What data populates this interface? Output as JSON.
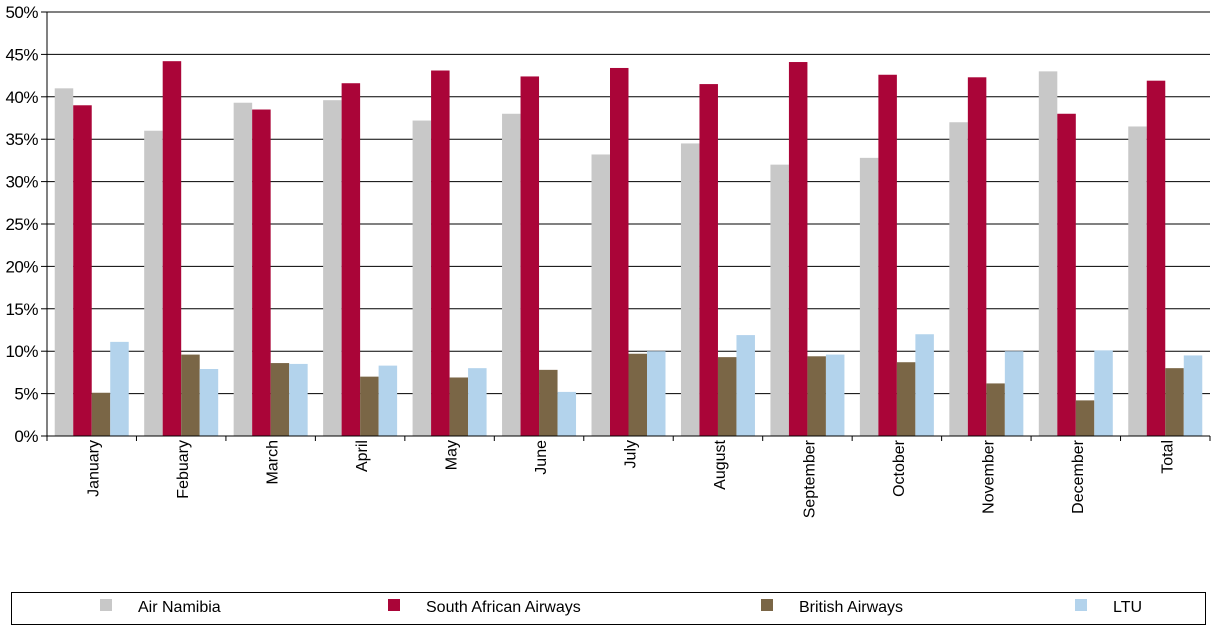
{
  "chart_data": {
    "type": "bar",
    "title": "",
    "xlabel": "",
    "ylabel": "",
    "ylim": [
      0,
      50
    ],
    "y_ticks": [
      "0%",
      "5%",
      "10%",
      "15%",
      "20%",
      "25%",
      "30%",
      "35%",
      "40%",
      "45%",
      "50%"
    ],
    "grid": true,
    "legend_position": "bottom",
    "categories": [
      "January",
      "Febuary",
      "March",
      "April",
      "May",
      "June",
      "July",
      "August",
      "September",
      "October",
      "November",
      "December",
      "Total"
    ],
    "series": [
      {
        "name": "Air Namibia",
        "color": "#c8c8c8",
        "values": [
          41.0,
          36.0,
          39.3,
          39.6,
          37.2,
          38.0,
          33.2,
          34.5,
          32.0,
          32.8,
          37.0,
          43.0,
          36.5
        ]
      },
      {
        "name": "South African Airways",
        "color": "#aa0538",
        "values": [
          39.0,
          44.2,
          38.5,
          41.6,
          43.1,
          42.4,
          43.4,
          41.5,
          44.1,
          42.6,
          42.3,
          38.0,
          41.9
        ]
      },
      {
        "name": "British Airways",
        "color": "#7a6646",
        "values": [
          5.1,
          9.6,
          8.6,
          7.0,
          6.9,
          7.8,
          9.7,
          9.3,
          9.4,
          8.7,
          6.2,
          4.2,
          8.0
        ]
      },
      {
        "name": "LTU",
        "color": "#b3d3ec",
        "values": [
          11.1,
          7.9,
          8.5,
          8.3,
          8.0,
          5.2,
          10.0,
          11.9,
          9.6,
          12.0,
          10.0,
          10.1,
          9.5
        ]
      }
    ]
  }
}
